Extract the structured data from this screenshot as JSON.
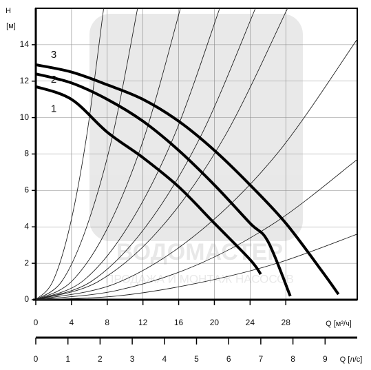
{
  "chart_data": {
    "type": "line",
    "y_label": "H",
    "y_unit": "[м]",
    "x_label": "Q [м³/ч]",
    "x2_label": "Q [л/с]",
    "xlim": [
      0,
      36
    ],
    "xticks": [
      0,
      4,
      8,
      12,
      16,
      20,
      24,
      28
    ],
    "ylim": [
      0,
      16
    ],
    "yticks": [
      0,
      2,
      4,
      6,
      8,
      10,
      12,
      14
    ],
    "x2lim": [
      0,
      10
    ],
    "x2ticks": [
      0,
      1,
      2,
      3,
      4,
      5,
      6,
      7,
      8,
      9
    ],
    "grid": true,
    "series": [
      {
        "name": "1",
        "color": "#000000",
        "x": [
          0,
          4,
          8,
          12,
          16,
          20,
          24,
          25.2
        ],
        "values": [
          11.7,
          11,
          9.2,
          7.8,
          6.2,
          4.2,
          2.2,
          1.4
        ]
      },
      {
        "name": "2",
        "color": "#000000",
        "x": [
          0,
          4,
          8,
          12,
          16,
          20,
          24,
          26,
          28.5
        ],
        "values": [
          12.4,
          11.9,
          11,
          9.8,
          8.2,
          6.3,
          4.2,
          3.2,
          0.2
        ]
      },
      {
        "name": "3",
        "color": "#000000",
        "x": [
          0,
          4,
          8,
          12,
          16,
          20,
          24,
          28,
          32,
          33.9
        ],
        "values": [
          12.9,
          12.5,
          11.8,
          11,
          9.8,
          8.2,
          6.3,
          4.2,
          1.6,
          0.3
        ]
      }
    ],
    "system_curves": [
      {
        "color": "#222222",
        "x": [
          0,
          1.9,
          3.8,
          5.7,
          7.6
        ],
        "values": [
          0,
          1,
          4,
          9,
          16
        ]
      },
      {
        "color": "#222222",
        "x": [
          0,
          2.9,
          5.7,
          8.6,
          11.4
        ],
        "values": [
          0,
          1,
          4,
          9,
          16
        ]
      },
      {
        "color": "#222222",
        "x": [
          0,
          4,
          8.1,
          12.2,
          16.2
        ],
        "values": [
          0,
          1,
          4,
          9,
          16
        ]
      },
      {
        "color": "#222222",
        "x": [
          0,
          5.2,
          10.3,
          15.5,
          20.6
        ],
        "values": [
          0,
          1,
          4,
          9,
          16
        ]
      },
      {
        "color": "#222222",
        "x": [
          0,
          6.2,
          12.3,
          18.5,
          24.6
        ],
        "values": [
          0,
          1,
          4,
          9,
          16
        ]
      },
      {
        "color": "#222222",
        "x": [
          0,
          7,
          14.1,
          21.2,
          28.2
        ],
        "values": [
          0,
          1,
          4,
          9,
          16
        ]
      },
      {
        "color": "#222222",
        "x": [
          0,
          9,
          18,
          27,
          36
        ],
        "values": [
          0,
          0.9,
          3.6,
          8,
          14.3
        ]
      },
      {
        "color": "#222222",
        "x": [
          0,
          9,
          18,
          27,
          36
        ],
        "values": [
          0,
          0.5,
          1.9,
          4.3,
          7.7
        ]
      },
      {
        "color": "#222222",
        "x": [
          0,
          9,
          18,
          27,
          36
        ],
        "values": [
          0,
          0.2,
          0.9,
          2,
          3.6
        ]
      }
    ],
    "watermark": {
      "title": "ВОДОМАСТЕР",
      "subtitle": "ПРОДАЖА И МОНТАЖ НАСОСОВ"
    }
  }
}
